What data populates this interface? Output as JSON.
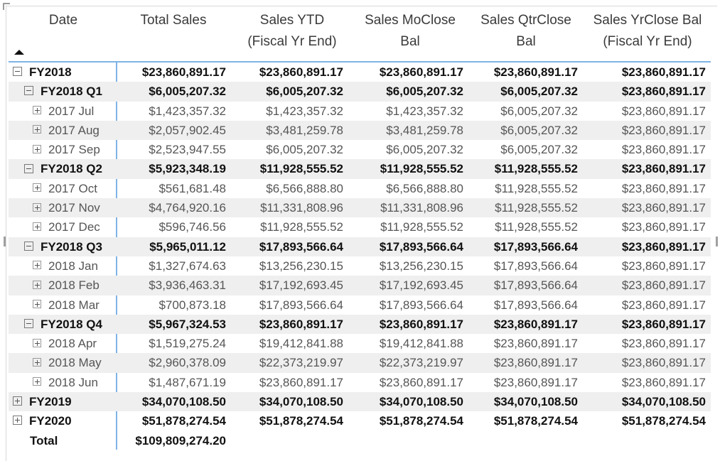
{
  "columns": [
    {
      "label_lines": [
        "Date"
      ]
    },
    {
      "label_lines": [
        "Total Sales"
      ]
    },
    {
      "label_lines": [
        "Sales YTD",
        "(Fiscal Yr End)"
      ]
    },
    {
      "label_lines": [
        "Sales MoClose",
        "Bal"
      ]
    },
    {
      "label_lines": [
        "Sales QtrClose",
        "Bal"
      ]
    },
    {
      "label_lines": [
        "Sales YrClose Bal",
        "(Fiscal Yr End)"
      ]
    }
  ],
  "sort": {
    "column": "Date",
    "direction": "ascending",
    "icon": "sort-ascending-triangle"
  },
  "colors": {
    "accent_line": "#7fb3e6",
    "alt_row": "#efefef"
  },
  "rows": [
    {
      "level": 0,
      "expander": "collapse",
      "label": "FY2018",
      "values": [
        "$23,860,891.17",
        "$23,860,891.17",
        "$23,860,891.17",
        "$23,860,891.17",
        "$23,860,891.17"
      ]
    },
    {
      "level": 1,
      "expander": "collapse",
      "label": "FY2018 Q1",
      "values": [
        "$6,005,207.32",
        "$6,005,207.32",
        "$6,005,207.32",
        "$6,005,207.32",
        "$23,860,891.17"
      ]
    },
    {
      "level": 2,
      "expander": "expand",
      "label": "2017 Jul",
      "values": [
        "$1,423,357.32",
        "$1,423,357.32",
        "$1,423,357.32",
        "$6,005,207.32",
        "$23,860,891.17"
      ]
    },
    {
      "level": 2,
      "expander": "expand",
      "label": "2017 Aug",
      "values": [
        "$2,057,902.45",
        "$3,481,259.78",
        "$3,481,259.78",
        "$6,005,207.32",
        "$23,860,891.17"
      ]
    },
    {
      "level": 2,
      "expander": "expand",
      "label": "2017 Sep",
      "values": [
        "$2,523,947.55",
        "$6,005,207.32",
        "$6,005,207.32",
        "$6,005,207.32",
        "$23,860,891.17"
      ]
    },
    {
      "level": 1,
      "expander": "collapse",
      "label": "FY2018 Q2",
      "values": [
        "$5,923,348.19",
        "$11,928,555.52",
        "$11,928,555.52",
        "$11,928,555.52",
        "$23,860,891.17"
      ]
    },
    {
      "level": 2,
      "expander": "expand",
      "label": "2017 Oct",
      "values": [
        "$561,681.48",
        "$6,566,888.80",
        "$6,566,888.80",
        "$11,928,555.52",
        "$23,860,891.17"
      ]
    },
    {
      "level": 2,
      "expander": "expand",
      "label": "2017 Nov",
      "values": [
        "$4,764,920.16",
        "$11,331,808.96",
        "$11,331,808.96",
        "$11,928,555.52",
        "$23,860,891.17"
      ]
    },
    {
      "level": 2,
      "expander": "expand",
      "label": "2017 Dec",
      "values": [
        "$596,746.56",
        "$11,928,555.52",
        "$11,928,555.52",
        "$11,928,555.52",
        "$23,860,891.17"
      ]
    },
    {
      "level": 1,
      "expander": "collapse",
      "label": "FY2018 Q3",
      "values": [
        "$5,965,011.12",
        "$17,893,566.64",
        "$17,893,566.64",
        "$17,893,566.64",
        "$23,860,891.17"
      ]
    },
    {
      "level": 2,
      "expander": "expand",
      "label": "2018 Jan",
      "values": [
        "$1,327,674.63",
        "$13,256,230.15",
        "$13,256,230.15",
        "$17,893,566.64",
        "$23,860,891.17"
      ]
    },
    {
      "level": 2,
      "expander": "expand",
      "label": "2018 Feb",
      "values": [
        "$3,936,463.31",
        "$17,192,693.45",
        "$17,192,693.45",
        "$17,893,566.64",
        "$23,860,891.17"
      ]
    },
    {
      "level": 2,
      "expander": "expand",
      "label": "2018 Mar",
      "values": [
        "$700,873.18",
        "$17,893,566.64",
        "$17,893,566.64",
        "$17,893,566.64",
        "$23,860,891.17"
      ]
    },
    {
      "level": 1,
      "expander": "collapse",
      "label": "FY2018 Q4",
      "values": [
        "$5,967,324.53",
        "$23,860,891.17",
        "$23,860,891.17",
        "$23,860,891.17",
        "$23,860,891.17"
      ]
    },
    {
      "level": 2,
      "expander": "expand",
      "label": "2018 Apr",
      "values": [
        "$1,519,275.24",
        "$19,412,841.88",
        "$19,412,841.88",
        "$23,860,891.17",
        "$23,860,891.17"
      ]
    },
    {
      "level": 2,
      "expander": "expand",
      "label": "2018 May",
      "values": [
        "$2,960,378.09",
        "$22,373,219.97",
        "$22,373,219.97",
        "$23,860,891.17",
        "$23,860,891.17"
      ]
    },
    {
      "level": 2,
      "expander": "expand",
      "label": "2018 Jun",
      "values": [
        "$1,487,671.19",
        "$23,860,891.17",
        "$23,860,891.17",
        "$23,860,891.17",
        "$23,860,891.17"
      ]
    },
    {
      "level": 0,
      "expander": "expand",
      "label": "FY2019",
      "values": [
        "$34,070,108.50",
        "$34,070,108.50",
        "$34,070,108.50",
        "$34,070,108.50",
        "$34,070,108.50"
      ]
    },
    {
      "level": 0,
      "expander": "expand",
      "label": "FY2020",
      "values": [
        "$51,878,274.54",
        "$51,878,274.54",
        "$51,878,274.54",
        "$51,878,274.54",
        "$51,878,274.54"
      ]
    },
    {
      "level": 0,
      "expander": "none",
      "label": "Total",
      "total": true,
      "values": [
        "$109,809,274.20",
        "",
        "",
        "",
        ""
      ]
    }
  ]
}
